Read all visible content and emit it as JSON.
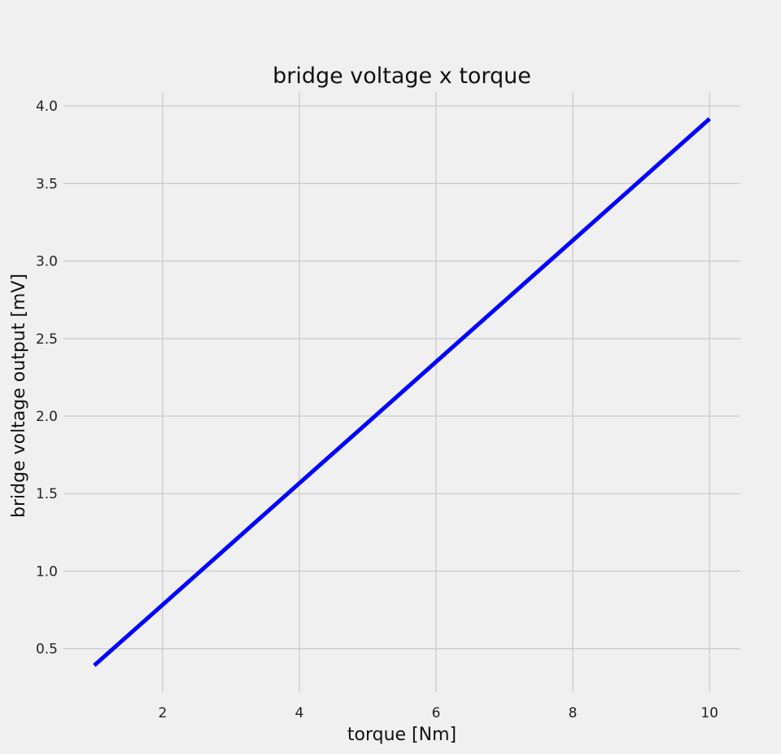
{
  "chart_data": {
    "type": "line",
    "title": "bridge voltage x torque",
    "xlabel": "torque [Nm]",
    "ylabel": "bridge voltage output [mV]",
    "xlim": [
      0.55,
      10.45
    ],
    "ylim": [
      0.22,
      4.09
    ],
    "x_ticks": [
      2,
      4,
      6,
      8,
      10
    ],
    "y_ticks": [
      0.5,
      1.0,
      1.5,
      2.0,
      2.5,
      3.0,
      3.5,
      4.0
    ],
    "x_tick_labels": [
      "2",
      "4",
      "6",
      "8",
      "10"
    ],
    "y_tick_labels": [
      "0.5",
      "1.0",
      "1.5",
      "2.0",
      "2.5",
      "3.0",
      "3.5",
      "4.0"
    ],
    "grid": true,
    "series": [
      {
        "color": "#0000ff",
        "x": [
          1,
          2,
          3,
          4,
          5,
          6,
          7,
          8,
          9,
          10
        ],
        "y": [
          0.392,
          0.783,
          1.175,
          1.567,
          1.958,
          2.35,
          2.742,
          3.133,
          3.525,
          3.917
        ]
      }
    ]
  }
}
